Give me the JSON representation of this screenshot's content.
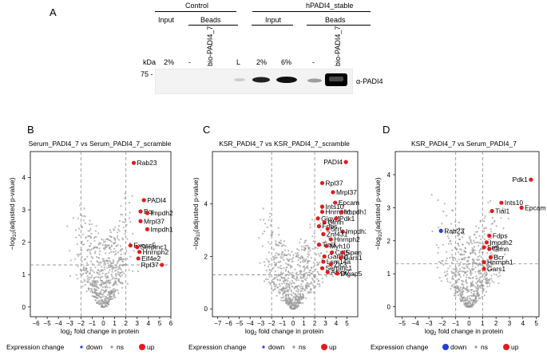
{
  "panel_a": {
    "letter": "A",
    "group_control": "Control",
    "group_hpadi4": "hPADI4_stable",
    "sub_input": "Input",
    "sub_beads": "Beads",
    "lanes": [
      "2%",
      "-",
      "bio-PADI4_7",
      "L",
      "2%",
      "6%",
      "-",
      "bio-PADI4_7"
    ],
    "kda_label": "kDa",
    "marker": "75 -",
    "band_label": "α-PADI4"
  },
  "chart_data": [
    {
      "type": "scatter",
      "panel": "B",
      "title": "Serum_PADI4_7 vs Serum_PADI4_7_scramble",
      "xlabel": "log2 fold change in protein",
      "ylabel": "-log10(adjusted p-value)",
      "xlim": [
        -6.5,
        6
      ],
      "ylim": [
        -0.3,
        4.8
      ],
      "xticks": [
        -6,
        -5,
        -4,
        -3,
        -2,
        -1,
        0,
        1,
        2,
        3,
        4,
        5,
        6
      ],
      "yticks": [
        0,
        1,
        2,
        3,
        4
      ],
      "vlines": [
        -2,
        2
      ],
      "hline": 1.3,
      "legend": {
        "title": "Expression change",
        "entries": [
          "down",
          "ns",
          "up"
        ]
      },
      "highlighted": [
        {
          "label": "Rab23",
          "x": 2.7,
          "y": 4.45,
          "group": "up"
        },
        {
          "label": "PADI4",
          "x": 3.6,
          "y": 3.3,
          "group": "up"
        },
        {
          "label": "Bcr",
          "x": 3.3,
          "y": 2.95,
          "group": "up"
        },
        {
          "label": "Impdh2",
          "x": 3.9,
          "y": 2.9,
          "group": "up"
        },
        {
          "label": "Mrpl37",
          "x": 3.3,
          "y": 2.65,
          "group": "up"
        },
        {
          "label": "Impdh1",
          "x": 3.9,
          "y": 2.4,
          "group": "up"
        },
        {
          "label": "Exosc5",
          "x": 2.4,
          "y": 1.9,
          "group": "up"
        },
        {
          "label": "Serpinc1",
          "x": 3.0,
          "y": 1.85,
          "group": "up"
        },
        {
          "label": "Hnrnph2",
          "x": 3.2,
          "y": 1.7,
          "group": "up"
        },
        {
          "label": "Eif4e2",
          "x": 3.1,
          "y": 1.5,
          "group": "up"
        },
        {
          "label": "Rpl37",
          "x": 5.2,
          "y": 1.3,
          "group": "up"
        }
      ]
    },
    {
      "type": "scatter",
      "panel": "C",
      "title": "KSR_PADI4_7 vs KSR_PADI4_7_scramble",
      "xlabel": "log2 fold change in protein",
      "ylabel": "-log10(adjusted p-value)",
      "xlim": [
        -7.5,
        6
      ],
      "ylim": [
        -0.3,
        6.0
      ],
      "xticks": [
        -7,
        -6,
        -5,
        -4,
        -3,
        -2,
        -1,
        0,
        1,
        2,
        3,
        4,
        5
      ],
      "yticks": [
        0,
        2,
        4
      ],
      "vlines": [
        -2,
        2
      ],
      "hline": 1.3,
      "legend": {
        "title": "Expression change",
        "entries": [
          "down",
          "ns",
          "up"
        ]
      },
      "highlighted": [
        {
          "label": "PADI4",
          "x": 4.9,
          "y": 5.6,
          "group": "up"
        },
        {
          "label": "Rpl37",
          "x": 2.7,
          "y": 4.8,
          "group": "up"
        },
        {
          "label": "Mrpl37",
          "x": 3.7,
          "y": 4.45,
          "group": "up"
        },
        {
          "label": "Ints10",
          "x": 2.7,
          "y": 3.9,
          "group": "up"
        },
        {
          "label": "Epcam",
          "x": 3.9,
          "y": 4.05,
          "group": "up"
        },
        {
          "label": "Hnrnph1",
          "x": 2.7,
          "y": 3.7,
          "group": "up"
        },
        {
          "label": "Impdh1",
          "x": 4.5,
          "y": 3.7,
          "group": "up"
        },
        {
          "label": "Gigyf1",
          "x": 2.3,
          "y": 3.45,
          "group": "up"
        },
        {
          "label": "Pdk1",
          "x": 4.0,
          "y": 3.45,
          "group": "up"
        },
        {
          "label": "Glmn",
          "x": 2.9,
          "y": 3.3,
          "group": "up"
        },
        {
          "label": "Fdps",
          "x": 2.4,
          "y": 3.15,
          "group": "up"
        },
        {
          "label": "Srrt",
          "x": 3.2,
          "y": 3.05,
          "group": "up"
        },
        {
          "label": "Impdh2",
          "x": 4.6,
          "y": 2.95,
          "group": "up"
        },
        {
          "label": "Znf431",
          "x": 2.8,
          "y": 2.85,
          "group": "up"
        },
        {
          "label": "Hnrnph2",
          "x": 3.5,
          "y": 2.65,
          "group": "up"
        },
        {
          "label": "Tial1",
          "x": 2.4,
          "y": 2.45,
          "group": "up"
        },
        {
          "label": "Myh10",
          "x": 3.1,
          "y": 2.4,
          "group": "up"
        },
        {
          "label": "Cul5",
          "x": 3.6,
          "y": 2.15,
          "group": "up"
        },
        {
          "label": "Spen",
          "x": 4.6,
          "y": 2.15,
          "group": "up"
        },
        {
          "label": "Garlab",
          "x": 2.9,
          "y": 2.0,
          "group": "up"
        },
        {
          "label": "Gars1",
          "x": 4.4,
          "y": 1.95,
          "group": "up"
        },
        {
          "label": "Lsm14a",
          "x": 2.8,
          "y": 1.8,
          "group": "up"
        },
        {
          "label": "Zic3",
          "x": 3.5,
          "y": 1.7,
          "group": "up"
        },
        {
          "label": "Serpinc1",
          "x": 2.7,
          "y": 1.55,
          "group": "up"
        },
        {
          "label": "Anxa7",
          "x": 3.2,
          "y": 1.4,
          "group": "up"
        },
        {
          "label": "Dlgap5",
          "x": 4.1,
          "y": 1.35,
          "group": "up"
        }
      ]
    },
    {
      "type": "scatter",
      "panel": "D",
      "title": "KSR_PADI4_7 vs Serum_PADI4_7",
      "xlabel": "log2 fold change in protein",
      "ylabel": "-log10(adjusted p-value)",
      "xlim": [
        -5.5,
        5.2
      ],
      "ylim": [
        -0.3,
        4.7
      ],
      "xticks": [
        -5,
        -4,
        -3,
        -2,
        -1,
        0,
        1,
        2,
        3,
        4,
        5
      ],
      "yticks": [
        0,
        1,
        2,
        3,
        4
      ],
      "vlines": [
        -1,
        1
      ],
      "hline": 1.3,
      "legend": {
        "title": "Expression change",
        "entries": [
          "down",
          "ns",
          "up"
        ]
      },
      "highlighted": [
        {
          "label": "Pdk1",
          "x": 4.6,
          "y": 3.85,
          "group": "up"
        },
        {
          "label": "Ints10",
          "x": 2.4,
          "y": 3.15,
          "group": "up"
        },
        {
          "label": "Tial1",
          "x": 1.7,
          "y": 2.9,
          "group": "up"
        },
        {
          "label": "Epcam",
          "x": 3.9,
          "y": 3.0,
          "group": "up"
        },
        {
          "label": "Rab23",
          "x": -2.1,
          "y": 2.3,
          "group": "down"
        },
        {
          "label": "Fdps",
          "x": 1.5,
          "y": 2.15,
          "group": "up"
        },
        {
          "label": "Impdh2",
          "x": 1.3,
          "y": 1.95,
          "group": "up"
        },
        {
          "label": "Srrt",
          "x": 1.1,
          "y": 1.8,
          "group": "up"
        },
        {
          "label": "Glmn",
          "x": 1.5,
          "y": 1.75,
          "group": "up"
        },
        {
          "label": "Bcr",
          "x": 1.6,
          "y": 1.5,
          "group": "up"
        },
        {
          "label": "Hnrnph1",
          "x": 1.1,
          "y": 1.35,
          "group": "up"
        },
        {
          "label": "Gars1",
          "x": 1.1,
          "y": 1.15,
          "group": "up"
        }
      ]
    }
  ],
  "panel_letters": [
    "B",
    "C",
    "D"
  ],
  "colors": {
    "up": "#e41a1c",
    "down": "#1f3fd6",
    "ns": "#9a9a9a",
    "dash": "#888888"
  }
}
